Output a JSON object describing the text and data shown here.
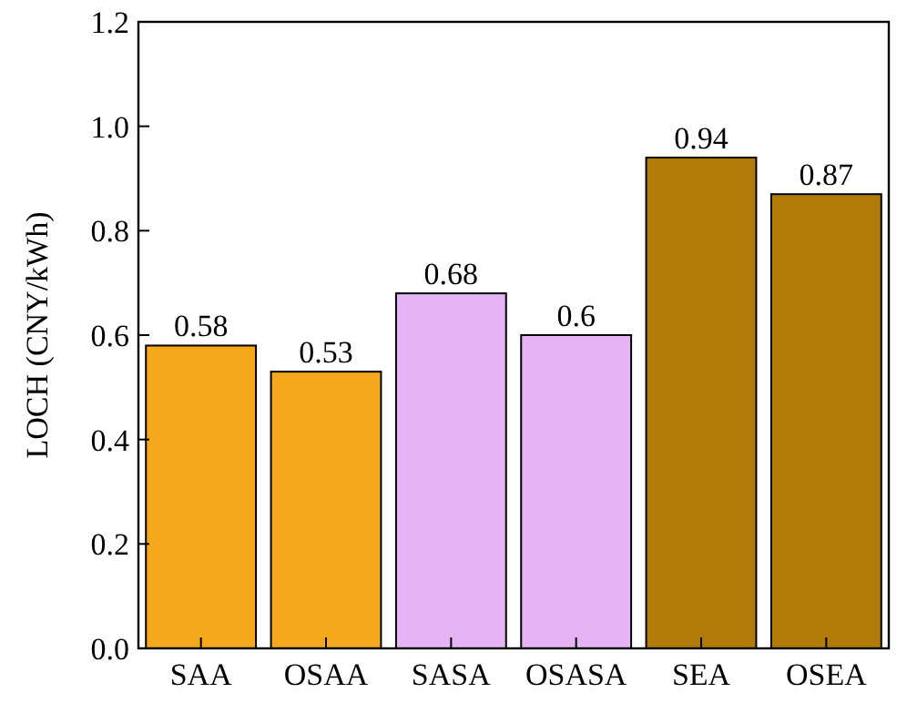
{
  "chart_data": {
    "type": "bar",
    "ylabel": "LOCH (CNY/kWh)",
    "categories": [
      "SAA",
      "OSAA",
      "SASA",
      "OSASA",
      "SEA",
      "OSEA"
    ],
    "values": [
      0.58,
      0.53,
      0.68,
      0.6,
      0.94,
      0.87
    ],
    "colors": [
      "#f5a81c",
      "#f5a81c",
      "#e6b3f5",
      "#e6b3f5",
      "#b27b07",
      "#b27b07"
    ],
    "ylim": [
      0,
      1.2
    ],
    "yticks": [
      {
        "value": 0,
        "label": "0.0"
      },
      {
        "value": 0.2,
        "label": "0.2"
      },
      {
        "value": 0.4,
        "label": "0.4"
      },
      {
        "value": 0.6,
        "label": "0.6"
      },
      {
        "value": 0.8,
        "label": "0.8"
      },
      {
        "value": 1,
        "label": "1.0"
      },
      {
        "value": 1.2,
        "label": "1.2"
      }
    ],
    "data_labels": true,
    "grid": false
  }
}
